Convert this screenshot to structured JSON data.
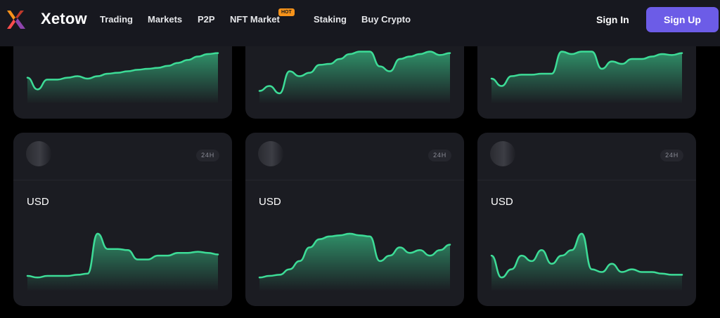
{
  "header": {
    "brand": "Xetow",
    "nav": [
      "Trading",
      "Markets",
      "P2P",
      "NFT Market",
      "Staking",
      "Buy Crypto"
    ],
    "hot_badge": "HOT",
    "sign_in": "Sign In",
    "sign_up": "Sign Up",
    "logo_colors": [
      "#ff4d4d",
      "#f7931a",
      "#8e44ad"
    ]
  },
  "theme": {
    "accent": "#6c5ce7",
    "chart_line": "#3ddc97",
    "card_bg": "#1b1c22"
  },
  "cards": [
    {
      "currency": "",
      "period": "",
      "values": [
        0.58,
        0.82,
        0.62,
        0.62,
        0.58,
        0.55,
        0.6,
        0.55,
        0.5,
        0.48,
        0.45,
        0.42,
        0.4,
        0.38,
        0.34,
        0.28,
        0.22,
        0.15,
        0.1,
        0.08
      ]
    },
    {
      "currency": "",
      "period": "",
      "values": [
        0.85,
        0.75,
        0.9,
        0.45,
        0.55,
        0.48,
        0.32,
        0.3,
        0.2,
        0.1,
        0.05,
        0.05,
        0.35,
        0.45,
        0.2,
        0.15,
        0.1,
        0.05,
        0.12,
        0.08
      ]
    },
    {
      "currency": "",
      "period": "",
      "values": [
        0.6,
        0.75,
        0.55,
        0.52,
        0.52,
        0.5,
        0.5,
        0.05,
        0.1,
        0.05,
        0.05,
        0.4,
        0.25,
        0.3,
        0.2,
        0.2,
        0.15,
        0.1,
        0.12,
        0.08
      ]
    },
    {
      "currency": "USD",
      "period": "24H",
      "values": [
        0.82,
        0.85,
        0.82,
        0.82,
        0.82,
        0.8,
        0.78,
        0.05,
        0.33,
        0.33,
        0.35,
        0.52,
        0.52,
        0.45,
        0.45,
        0.4,
        0.4,
        0.38,
        0.4,
        0.43
      ]
    },
    {
      "currency": "USD",
      "period": "24H",
      "values": [
        0.85,
        0.82,
        0.8,
        0.7,
        0.55,
        0.3,
        0.15,
        0.1,
        0.08,
        0.05,
        0.08,
        0.1,
        0.55,
        0.45,
        0.3,
        0.4,
        0.35,
        0.45,
        0.35,
        0.25
      ]
    },
    {
      "currency": "USD",
      "period": "24H",
      "values": [
        0.45,
        0.85,
        0.7,
        0.45,
        0.55,
        0.35,
        0.6,
        0.45,
        0.35,
        0.05,
        0.7,
        0.75,
        0.6,
        0.75,
        0.7,
        0.75,
        0.75,
        0.78,
        0.8,
        0.8
      ]
    }
  ]
}
